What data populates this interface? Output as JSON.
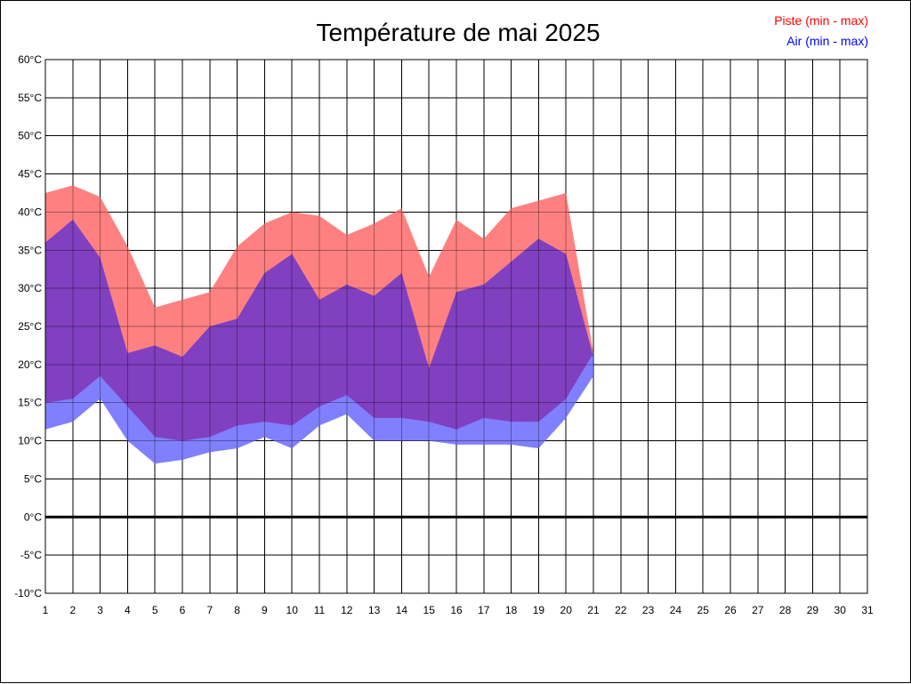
{
  "chart_data": {
    "type": "area",
    "title": "Température de mai 2025",
    "legend_position": "top-right",
    "grid": true,
    "x_ticks": [
      "1",
      "2",
      "3",
      "4",
      "5",
      "6",
      "7",
      "8",
      "9",
      "10",
      "11",
      "12",
      "13",
      "14",
      "15",
      "16",
      "17",
      "18",
      "19",
      "20",
      "21",
      "22",
      "23",
      "24",
      "25",
      "26",
      "27",
      "28",
      "29",
      "30",
      "31"
    ],
    "xlim": [
      1,
      31
    ],
    "y_ticks": [
      "60°C",
      "55°C",
      "50°C",
      "45°C",
      "40°C",
      "35°C",
      "30°C",
      "25°C",
      "20°C",
      "15°C",
      "10°C",
      "5°C",
      "0°C",
      "-5°C",
      "-10°C"
    ],
    "ylim": [
      -10,
      60
    ],
    "zero_line": 0,
    "x": [
      1,
      2,
      3,
      4,
      5,
      6,
      7,
      8,
      9,
      10,
      11,
      12,
      13,
      14,
      15,
      16,
      17,
      18,
      19,
      20,
      21
    ],
    "series": [
      {
        "name": "Piste (min - max)",
        "color": "#ff8080",
        "min": [
          15.0,
          15.5,
          18.5,
          14.5,
          10.5,
          10.0,
          10.5,
          12.0,
          12.5,
          12.0,
          14.5,
          16.0,
          13.0,
          13.0,
          12.5,
          11.5,
          13.0,
          12.5,
          12.5,
          15.5,
          21.5
        ],
        "max": [
          42.5,
          43.5,
          42.0,
          35.5,
          27.5,
          28.5,
          29.5,
          35.5,
          38.5,
          40.0,
          39.5,
          37.0,
          38.5,
          40.5,
          31.5,
          39.0,
          36.5,
          40.5,
          41.5,
          42.5,
          21.5
        ]
      },
      {
        "name": "Air (min - max)",
        "color": "#8080ff",
        "min": [
          11.5,
          12.5,
          15.5,
          10.0,
          7.0,
          7.5,
          8.5,
          9.0,
          10.5,
          9.0,
          12.0,
          13.5,
          10.0,
          10.0,
          10.0,
          9.5,
          9.5,
          9.5,
          9.0,
          13.0,
          18.5
        ],
        "max": [
          36.0,
          39.0,
          34.0,
          21.5,
          22.5,
          21.0,
          25.0,
          26.0,
          32.0,
          34.5,
          28.5,
          30.5,
          29.0,
          32.0,
          19.5,
          29.5,
          30.5,
          33.5,
          36.5,
          34.5,
          21.0
        ]
      }
    ],
    "overlap_color": "#8040c0"
  }
}
